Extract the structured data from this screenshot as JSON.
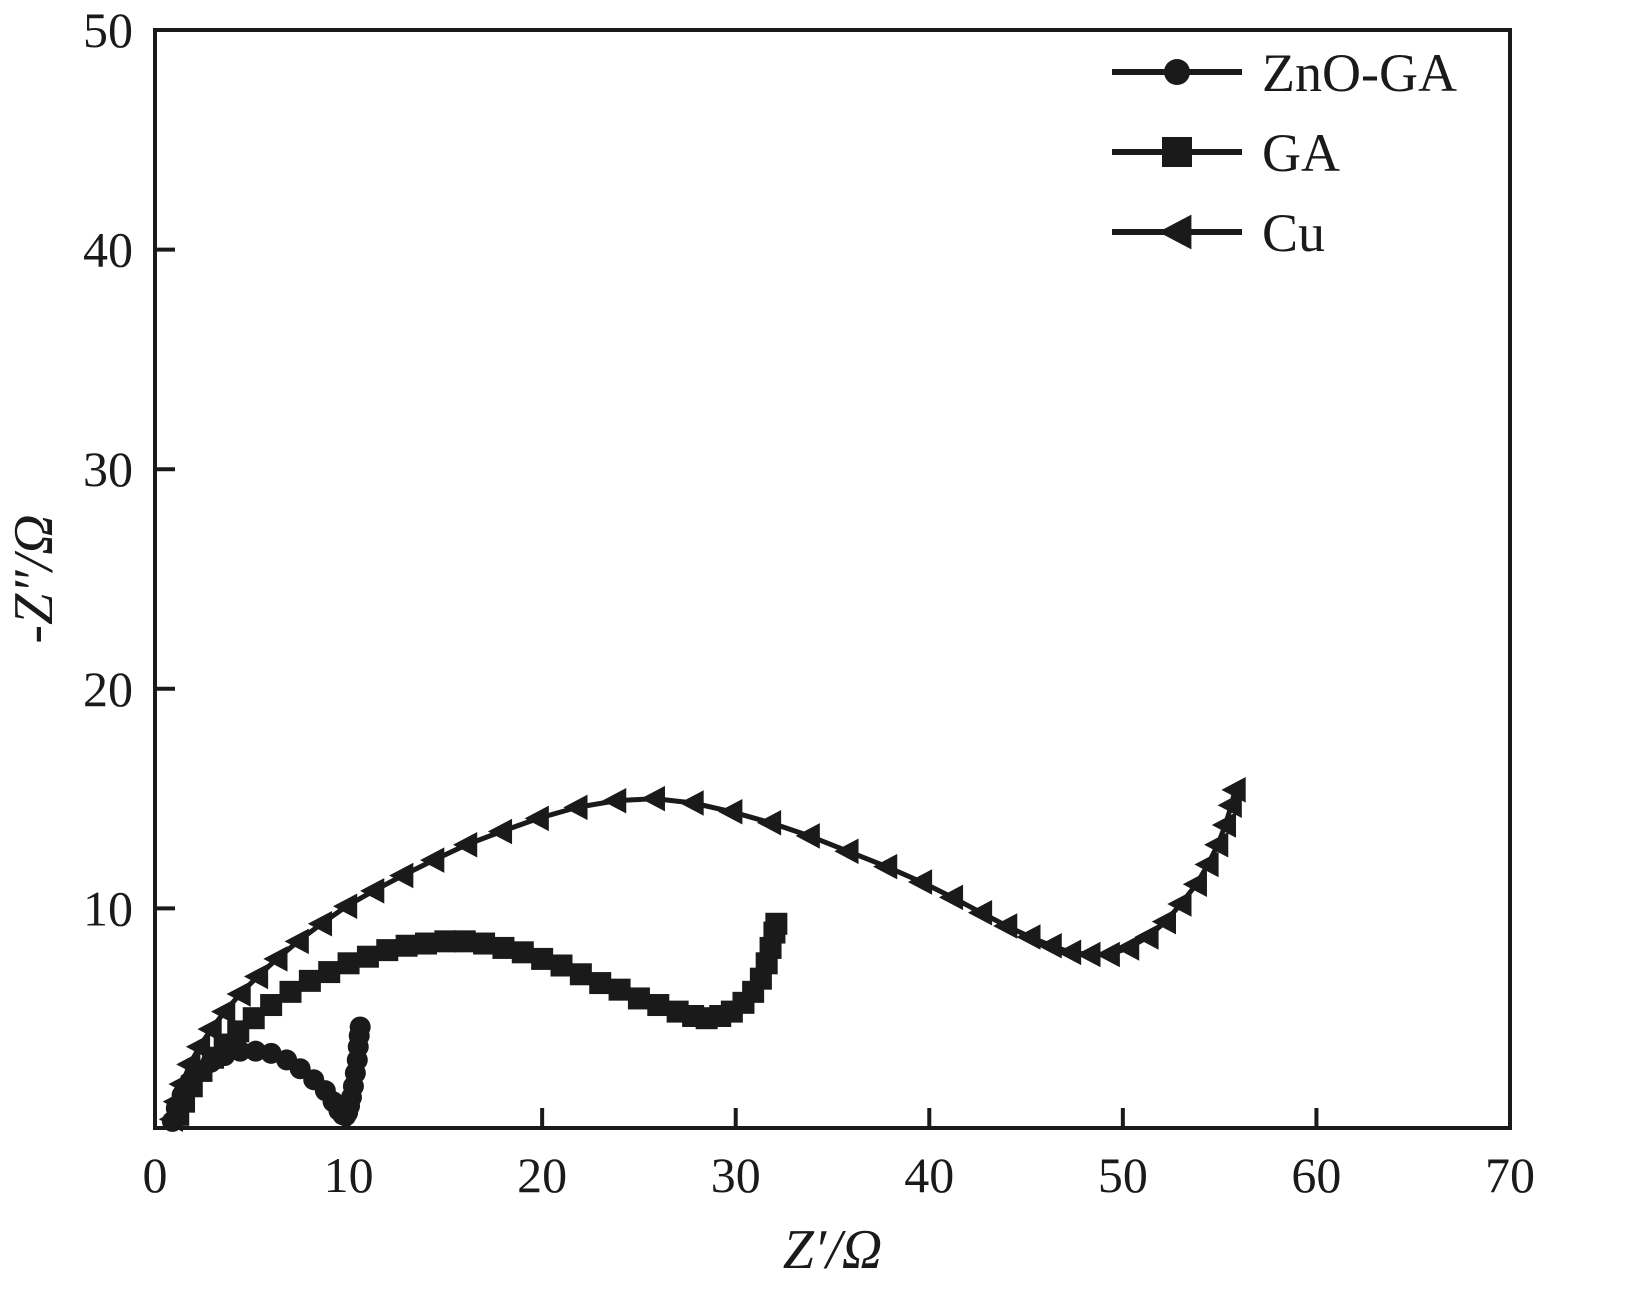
{
  "figure": {
    "background": "#ffffff",
    "ink": "#1a1a1a"
  },
  "chart_data": {
    "type": "scatter",
    "subtype": "nyquist-impedance-plot",
    "title": "",
    "xlabel": "Z′/Ω",
    "ylabel": "-Z″/Ω",
    "xlim": [
      0,
      70
    ],
    "ylim": [
      0,
      50
    ],
    "x_ticks": [
      0,
      10,
      20,
      30,
      40,
      50,
      60,
      70
    ],
    "y_ticks": [
      10,
      20,
      30,
      40,
      50
    ],
    "grid": false,
    "legend_position": "top-right-inside",
    "series": [
      {
        "name": "ZnO-GA",
        "marker": "circle",
        "color": "#1a1a1a",
        "points": [
          [
            0.9,
            0.3
          ],
          [
            1.1,
            0.9
          ],
          [
            1.4,
            1.5
          ],
          [
            1.8,
            2.1
          ],
          [
            2.3,
            2.6
          ],
          [
            2.9,
            3.0
          ],
          [
            3.6,
            3.3
          ],
          [
            4.4,
            3.5
          ],
          [
            5.2,
            3.5
          ],
          [
            6.0,
            3.4
          ],
          [
            6.8,
            3.1
          ],
          [
            7.5,
            2.7
          ],
          [
            8.2,
            2.2
          ],
          [
            8.8,
            1.7
          ],
          [
            9.2,
            1.2
          ],
          [
            9.5,
            0.8
          ],
          [
            9.7,
            0.6
          ],
          [
            9.85,
            0.55
          ],
          [
            9.95,
            0.7
          ],
          [
            10.05,
            1.0
          ],
          [
            10.15,
            1.4
          ],
          [
            10.25,
            1.9
          ],
          [
            10.35,
            2.5
          ],
          [
            10.45,
            3.1
          ],
          [
            10.5,
            3.7
          ],
          [
            10.55,
            4.2
          ],
          [
            10.6,
            4.6
          ]
        ]
      },
      {
        "name": "GA",
        "marker": "square",
        "color": "#1a1a1a",
        "points": [
          [
            1.2,
            0.6
          ],
          [
            1.5,
            1.2
          ],
          [
            1.9,
            1.9
          ],
          [
            2.4,
            2.6
          ],
          [
            3.0,
            3.2
          ],
          [
            3.6,
            3.8
          ],
          [
            4.3,
            4.4
          ],
          [
            5.1,
            5.0
          ],
          [
            6.0,
            5.6
          ],
          [
            7.0,
            6.2
          ],
          [
            8.0,
            6.7
          ],
          [
            9.0,
            7.1
          ],
          [
            10.0,
            7.5
          ],
          [
            11.0,
            7.8
          ],
          [
            12.0,
            8.1
          ],
          [
            13.0,
            8.3
          ],
          [
            14.0,
            8.4
          ],
          [
            15.0,
            8.5
          ],
          [
            16.0,
            8.5
          ],
          [
            17.0,
            8.4
          ],
          [
            18.0,
            8.2
          ],
          [
            19.0,
            8.0
          ],
          [
            20.0,
            7.7
          ],
          [
            21.0,
            7.4
          ],
          [
            22.0,
            7.0
          ],
          [
            23.0,
            6.6
          ],
          [
            24.0,
            6.3
          ],
          [
            25.0,
            5.9
          ],
          [
            26.0,
            5.6
          ],
          [
            27.0,
            5.3
          ],
          [
            27.8,
            5.1
          ],
          [
            28.5,
            5.0
          ],
          [
            29.2,
            5.1
          ],
          [
            29.8,
            5.3
          ],
          [
            30.4,
            5.7
          ],
          [
            30.9,
            6.2
          ],
          [
            31.3,
            6.8
          ],
          [
            31.6,
            7.5
          ],
          [
            31.8,
            8.2
          ],
          [
            32.0,
            8.9
          ],
          [
            32.1,
            9.3
          ]
        ]
      },
      {
        "name": "Cu",
        "marker": "triangle-left",
        "color": "#1a1a1a",
        "points": [
          [
            0.9,
            0.4
          ],
          [
            1.1,
            1.2
          ],
          [
            1.4,
            2.0
          ],
          [
            1.8,
            2.9
          ],
          [
            2.3,
            3.7
          ],
          [
            2.9,
            4.5
          ],
          [
            3.6,
            5.3
          ],
          [
            4.4,
            6.1
          ],
          [
            5.3,
            6.9
          ],
          [
            6.3,
            7.7
          ],
          [
            7.4,
            8.5
          ],
          [
            8.6,
            9.3
          ],
          [
            9.9,
            10.1
          ],
          [
            11.3,
            10.8
          ],
          [
            12.8,
            11.5
          ],
          [
            14.4,
            12.2
          ],
          [
            16.1,
            12.9
          ],
          [
            17.9,
            13.5
          ],
          [
            19.8,
            14.1
          ],
          [
            21.8,
            14.6
          ],
          [
            23.8,
            14.9
          ],
          [
            25.8,
            15.0
          ],
          [
            27.8,
            14.8
          ],
          [
            29.8,
            14.4
          ],
          [
            31.8,
            13.9
          ],
          [
            33.8,
            13.3
          ],
          [
            35.8,
            12.6
          ],
          [
            37.8,
            11.9
          ],
          [
            39.6,
            11.2
          ],
          [
            41.2,
            10.5
          ],
          [
            42.7,
            9.8
          ],
          [
            44.0,
            9.2
          ],
          [
            45.2,
            8.7
          ],
          [
            46.3,
            8.3
          ],
          [
            47.3,
            8.0
          ],
          [
            48.3,
            7.9
          ],
          [
            49.3,
            7.9
          ],
          [
            50.3,
            8.2
          ],
          [
            51.3,
            8.7
          ],
          [
            52.2,
            9.4
          ],
          [
            53.0,
            10.2
          ],
          [
            53.8,
            11.1
          ],
          [
            54.4,
            12.0
          ],
          [
            54.9,
            12.9
          ],
          [
            55.3,
            13.8
          ],
          [
            55.6,
            14.7
          ],
          [
            55.8,
            15.4
          ]
        ]
      }
    ]
  }
}
